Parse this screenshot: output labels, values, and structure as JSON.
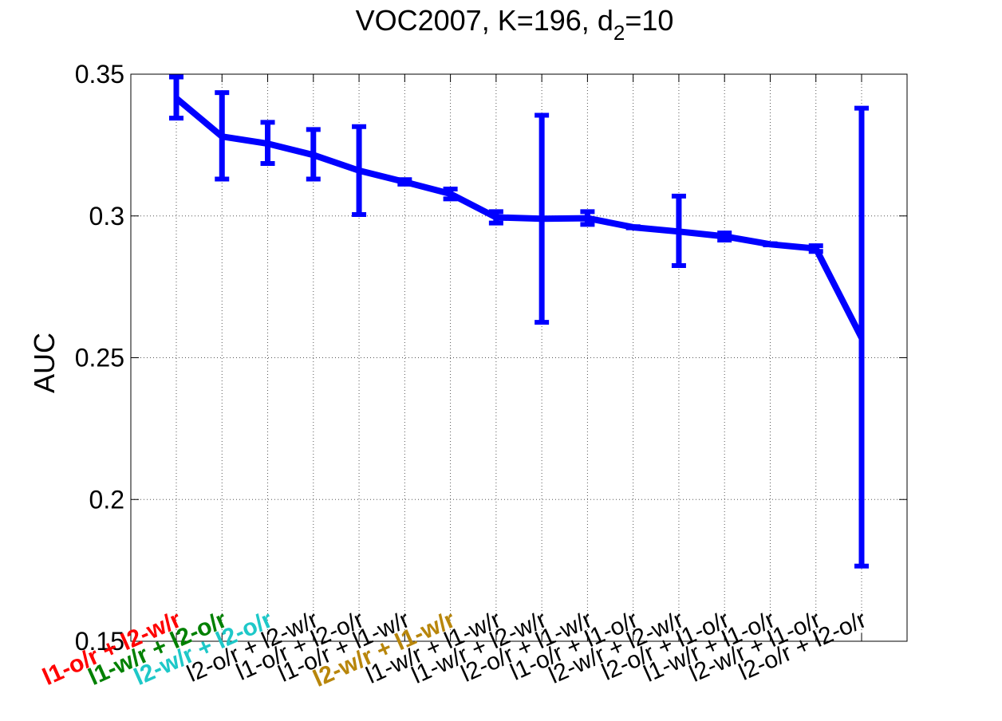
{
  "chart_data": {
    "type": "line",
    "title": {
      "prefix": "VOC2007, K=196, d",
      "subscript": "2",
      "suffix": "=10"
    },
    "xlabel": "",
    "ylabel": "AUC",
    "ylim": [
      0.15,
      0.35
    ],
    "yticks": [
      0.15,
      0.2,
      0.25,
      0.3,
      0.35
    ],
    "ytick_labels": [
      "0.15",
      "0.2",
      "0.25",
      "0.3",
      "0.35"
    ],
    "grid": true,
    "series": [
      {
        "name": "AUC",
        "color": "#0000ff",
        "values": [
          0.3415,
          0.328,
          0.3255,
          0.3215,
          0.316,
          0.312,
          0.3078,
          0.2995,
          0.299,
          0.2992,
          0.296,
          0.2945,
          0.2928,
          0.29,
          0.2885,
          0.257
        ],
        "error_low": [
          0.3345,
          0.313,
          0.3185,
          0.313,
          0.3005,
          0.3112,
          0.306,
          0.2975,
          0.2625,
          0.297,
          0.2958,
          0.2825,
          0.2915,
          0.2898,
          0.2875,
          0.1765
        ],
        "error_high": [
          0.349,
          0.3435,
          0.333,
          0.3305,
          0.3315,
          0.3128,
          0.3095,
          0.3015,
          0.3355,
          0.3015,
          0.2962,
          0.307,
          0.294,
          0.2902,
          0.2895,
          0.338
        ]
      }
    ],
    "categories": [
      {
        "label": "l1-o/r + l2-w/r",
        "color": "#ff0000",
        "bold": true
      },
      {
        "label": "l1-w/r + l2-o/r",
        "color": "#008000",
        "bold": true
      },
      {
        "label": "l2-w/r + l2-o/r",
        "color": "#1ec8c8",
        "bold": true
      },
      {
        "label": "l2-o/r + l2-w/r",
        "color": "#000000",
        "bold": false
      },
      {
        "label": "l1-o/r + l2-o/r",
        "color": "#000000",
        "bold": false
      },
      {
        "label": "l1-o/r + l1-w/r",
        "color": "#000000",
        "bold": false
      },
      {
        "label": "l2-w/r + l1-w/r",
        "color": "#b8860b",
        "bold": true
      },
      {
        "label": "l1-w/r + l1-w/r",
        "color": "#000000",
        "bold": false
      },
      {
        "label": "l1-w/r + l2-w/r",
        "color": "#000000",
        "bold": false
      },
      {
        "label": "l2-o/r + l1-w/r",
        "color": "#000000",
        "bold": false
      },
      {
        "label": "l1-o/r + l1-o/r",
        "color": "#000000",
        "bold": false
      },
      {
        "label": "l2-w/r + l2-w/r",
        "color": "#000000",
        "bold": false
      },
      {
        "label": "l2-o/r + l1-o/r",
        "color": "#000000",
        "bold": false
      },
      {
        "label": "l1-w/r + l1-o/r",
        "color": "#000000",
        "bold": false
      },
      {
        "label": "l2-w/r + l1-o/r",
        "color": "#000000",
        "bold": false
      },
      {
        "label": "l2-o/r + l2-o/r",
        "color": "#000000",
        "bold": false
      }
    ]
  }
}
